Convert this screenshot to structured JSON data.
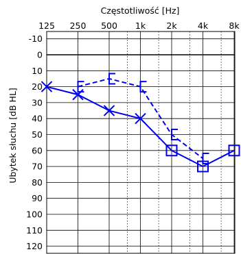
{
  "chart_data": {
    "type": "line",
    "title": "Częstotliwość  [Hz]",
    "xlabel": "Częstotliwość  [Hz]",
    "ylabel": "Ubytek słuchu  [dB HL]",
    "x_ticks": [
      {
        "label": "125",
        "hz": 125
      },
      {
        "label": "250",
        "hz": 250
      },
      {
        "label": "500",
        "hz": 500
      },
      {
        "label": "1k",
        "hz": 1000
      },
      {
        "label": "2k",
        "hz": 2000
      },
      {
        "label": "4k",
        "hz": 4000
      },
      {
        "label": "8k",
        "hz": 8000
      }
    ],
    "x_half_octaves_hz": [
      750,
      1500,
      3000,
      6000
    ],
    "y_ticks": [
      -10,
      0,
      10,
      20,
      30,
      40,
      50,
      60,
      70,
      80,
      90,
      100,
      110,
      120
    ],
    "ylim": [
      -15,
      125
    ],
    "y_inverted": true,
    "x_scale": "log2 (octave)",
    "grid": true,
    "series": [
      {
        "marker": "x",
        "line": "solid",
        "color": "#0000ee",
        "points": [
          {
            "hz": 125,
            "db": 20
          },
          {
            "hz": 250,
            "db": 25
          },
          {
            "hz": 500,
            "db": 35
          },
          {
            "hz": 1000,
            "db": 40
          },
          {
            "hz": 2000,
            "db": 60
          },
          {
            "hz": 4000,
            "db": 70
          },
          {
            "hz": 8000,
            "db": 60
          }
        ],
        "marker_hz": [
          125,
          250,
          500,
          1000
        ]
      },
      {
        "marker": "bracket",
        "line": "dashed",
        "color": "#0000ee",
        "points": [
          {
            "hz": 250,
            "db": 20
          },
          {
            "hz": 500,
            "db": 15
          },
          {
            "hz": 1000,
            "db": 20
          },
          {
            "hz": 2000,
            "db": 50
          },
          {
            "hz": 4000,
            "db": 65
          }
        ]
      }
    ],
    "square_markers": [
      {
        "hz": 2000,
        "db": 60
      },
      {
        "hz": 4000,
        "db": 70
      },
      {
        "hz": 8000,
        "db": 60
      }
    ]
  }
}
